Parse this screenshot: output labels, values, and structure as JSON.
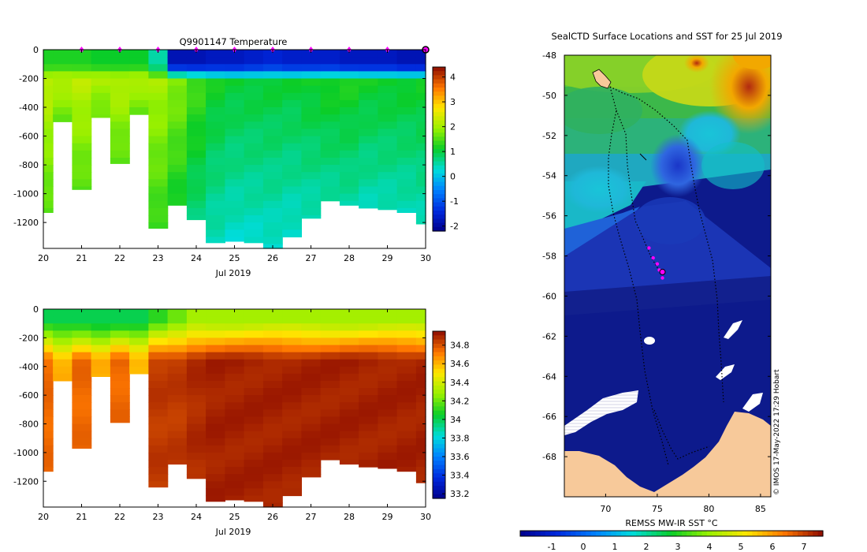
{
  "chart_data": [
    {
      "type": "heatmap",
      "title": "Q9901147  Temperature",
      "xlabel": "Jul 2019",
      "ylabel": "",
      "x_ticks": [
        "20",
        "21",
        "22",
        "23",
        "24",
        "25",
        "26",
        "27",
        "28",
        "29",
        "30"
      ],
      "y_ticks": [
        "0",
        "-200",
        "-400",
        "-600",
        "-800",
        "-1000",
        "-1200"
      ],
      "xlim": [
        20,
        30
      ],
      "ylim": [
        -1380,
        0
      ],
      "colorbar": {
        "ticks": [
          "4",
          "3",
          "2",
          "1",
          "0",
          "-1",
          "-2"
        ],
        "range": [
          -2.2,
          4.4
        ]
      },
      "surface_markers": [
        21,
        22,
        23,
        24,
        25,
        26,
        27,
        28,
        29
      ],
      "profiles": [
        {
          "day": 20.0,
          "max_depth": 1130,
          "surface": 1.2,
          "deep": 2.2
        },
        {
          "day": 20.5,
          "max_depth": 500,
          "surface": 1.2,
          "deep": 2.3
        },
        {
          "day": 21.0,
          "max_depth": 970,
          "surface": 1.2,
          "deep": 2.2
        },
        {
          "day": 21.5,
          "max_depth": 470,
          "surface": 1.1,
          "deep": 2.3
        },
        {
          "day": 22.0,
          "max_depth": 790,
          "surface": 1.1,
          "deep": 2.2
        },
        {
          "day": 22.5,
          "max_depth": 450,
          "surface": 1.1,
          "deep": 2.3
        },
        {
          "day": 23.0,
          "max_depth": 1240,
          "surface": 0.5,
          "deep": 2.0
        },
        {
          "day": 23.5,
          "max_depth": 1080,
          "surface": -1.8,
          "deep": 1.8
        },
        {
          "day": 24.0,
          "max_depth": 1180,
          "surface": -1.8,
          "deep": 1.4
        },
        {
          "day": 24.5,
          "max_depth": 1340,
          "surface": -1.7,
          "deep": 1.1
        },
        {
          "day": 25.0,
          "max_depth": 1330,
          "surface": -1.7,
          "deep": 1.0
        },
        {
          "day": 25.5,
          "max_depth": 1340,
          "surface": -1.6,
          "deep": 1.0
        },
        {
          "day": 26.0,
          "max_depth": 1380,
          "surface": -1.5,
          "deep": 1.0
        },
        {
          "day": 26.5,
          "max_depth": 1300,
          "surface": -1.6,
          "deep": 1.0
        },
        {
          "day": 27.0,
          "max_depth": 1170,
          "surface": -1.6,
          "deep": 1.1
        },
        {
          "day": 27.5,
          "max_depth": 1050,
          "surface": -1.6,
          "deep": 1.2
        },
        {
          "day": 28.0,
          "max_depth": 1080,
          "surface": -1.7,
          "deep": 1.2
        },
        {
          "day": 28.5,
          "max_depth": 1100,
          "surface": -1.7,
          "deep": 1.1
        },
        {
          "day": 29.0,
          "max_depth": 1110,
          "surface": -1.7,
          "deep": 1.1
        },
        {
          "day": 29.5,
          "max_depth": 1130,
          "surface": -1.8,
          "deep": 1.1
        },
        {
          "day": 30.0,
          "max_depth": 1210,
          "surface": -1.8,
          "deep": 1.1
        }
      ]
    },
    {
      "type": "heatmap",
      "title": "",
      "xlabel": "Jul 2019",
      "ylabel": "",
      "x_ticks": [
        "20",
        "21",
        "22",
        "23",
        "24",
        "25",
        "26",
        "27",
        "28",
        "29",
        "30"
      ],
      "y_ticks": [
        "0",
        "-200",
        "-400",
        "-600",
        "-800",
        "-1000",
        "-1200"
      ],
      "xlim": [
        20,
        30
      ],
      "ylim": [
        -1380,
        0
      ],
      "colorbar": {
        "ticks": [
          "34.8",
          "34.6",
          "34.4",
          "34.2",
          "34",
          "33.8",
          "33.6",
          "33.4",
          "33.2"
        ],
        "range": [
          33.15,
          34.95
        ]
      },
      "profiles": [
        {
          "day": 20.0,
          "max_depth": 1130,
          "surface": 34.0,
          "deep": 34.75
        },
        {
          "day": 20.5,
          "max_depth": 500,
          "surface": 34.0,
          "deep": 34.6
        },
        {
          "day": 21.0,
          "max_depth": 970,
          "surface": 34.0,
          "deep": 34.75
        },
        {
          "day": 21.5,
          "max_depth": 470,
          "surface": 34.0,
          "deep": 34.6
        },
        {
          "day": 22.0,
          "max_depth": 790,
          "surface": 34.0,
          "deep": 34.75
        },
        {
          "day": 22.5,
          "max_depth": 450,
          "surface": 34.0,
          "deep": 34.6
        },
        {
          "day": 23.0,
          "max_depth": 1240,
          "surface": 34.1,
          "deep": 34.85
        },
        {
          "day": 23.5,
          "max_depth": 1080,
          "surface": 34.2,
          "deep": 34.85
        },
        {
          "day": 24.0,
          "max_depth": 1180,
          "surface": 34.3,
          "deep": 34.88
        },
        {
          "day": 24.5,
          "max_depth": 1340,
          "surface": 34.3,
          "deep": 34.9
        },
        {
          "day": 25.0,
          "max_depth": 1330,
          "surface": 34.3,
          "deep": 34.9
        },
        {
          "day": 25.5,
          "max_depth": 1340,
          "surface": 34.3,
          "deep": 34.9
        },
        {
          "day": 26.0,
          "max_depth": 1380,
          "surface": 34.3,
          "deep": 34.9
        },
        {
          "day": 26.5,
          "max_depth": 1300,
          "surface": 34.3,
          "deep": 34.9
        },
        {
          "day": 27.0,
          "max_depth": 1170,
          "surface": 34.3,
          "deep": 34.9
        },
        {
          "day": 27.5,
          "max_depth": 1050,
          "surface": 34.3,
          "deep": 34.9
        },
        {
          "day": 28.0,
          "max_depth": 1080,
          "surface": 34.3,
          "deep": 34.9
        },
        {
          "day": 28.5,
          "max_depth": 1100,
          "surface": 34.3,
          "deep": 34.9
        },
        {
          "day": 29.0,
          "max_depth": 1110,
          "surface": 34.3,
          "deep": 34.9
        },
        {
          "day": 29.5,
          "max_depth": 1130,
          "surface": 34.3,
          "deep": 34.9
        },
        {
          "day": 30.0,
          "max_depth": 1210,
          "surface": 34.3,
          "deep": 34.9
        }
      ]
    },
    {
      "type": "heatmap",
      "title": "SealCTD Surface Locations and SST for 25 Jul 2019",
      "xlabel": "",
      "ylabel": "",
      "x_ticks": [
        "70",
        "75",
        "80",
        "85"
      ],
      "y_ticks": [
        "-48",
        "-50",
        "-52",
        "-54",
        "-56",
        "-58",
        "-60",
        "-62",
        "-64",
        "-66",
        "-68"
      ],
      "xlim": [
        66,
        86
      ],
      "ylim": [
        -70,
        -48
      ],
      "colorbar": {
        "label": "REMSS MW-IR SST °C",
        "ticks": [
          "-1",
          "0",
          "1",
          "2",
          "3",
          "4",
          "5",
          "6",
          "7"
        ],
        "range": [
          -2,
          7.6
        ]
      },
      "credit": "© IMOS 17-May-2022 17:29 Hobart",
      "current_position": {
        "lon": 75.5,
        "lat": -58.8
      },
      "recent_positions": [
        [
          74.2,
          -57.6
        ],
        [
          74.6,
          -58.1
        ],
        [
          75.0,
          -58.4
        ],
        [
          75.2,
          -58.7
        ],
        [
          75.5,
          -58.8
        ],
        [
          75.5,
          -59.1
        ]
      ]
    }
  ]
}
